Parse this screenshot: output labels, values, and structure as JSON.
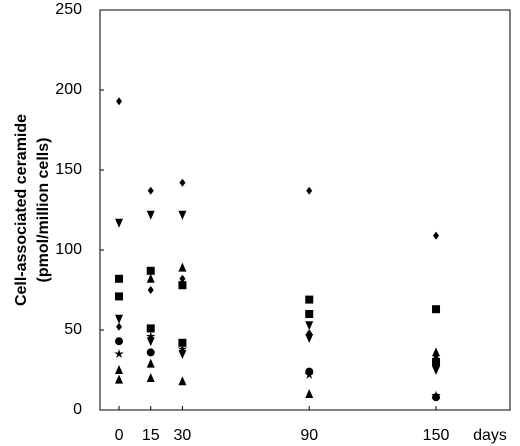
{
  "chart_data": {
    "type": "scatter",
    "ylabel": [
      "Cell-associated ceramide",
      "(pmol/million cells)"
    ],
    "xlabel": "days",
    "xlim": [
      -9,
      185
    ],
    "xticks": [
      0,
      15,
      30,
      90,
      150
    ],
    "ylim": [
      0,
      250
    ],
    "yticks": [
      0,
      50,
      100,
      150,
      200,
      250
    ],
    "grid": false,
    "series": [
      {
        "marker": "diamond",
        "color": "#000000",
        "x": [
          0,
          0,
          15,
          15,
          30,
          30,
          90,
          90,
          150
        ],
        "values": [
          193,
          52,
          137,
          75,
          142,
          82,
          137,
          48,
          109
        ]
      },
      {
        "marker": "triangle-down",
        "color": "#000000",
        "x": [
          0,
          0,
          15,
          15,
          30,
          30,
          90,
          90,
          150
        ],
        "values": [
          117,
          57,
          122,
          43,
          122,
          35,
          53,
          45,
          25
        ]
      },
      {
        "marker": "square",
        "color": "#000000",
        "x": [
          0,
          0,
          15,
          15,
          30,
          30,
          90,
          90,
          150,
          150
        ],
        "values": [
          82,
          71,
          87,
          51,
          78,
          42,
          69,
          60,
          63,
          30
        ]
      },
      {
        "marker": "triangle",
        "color": "#000000",
        "x": [
          0,
          0,
          15,
          15,
          15,
          30,
          30,
          30,
          90,
          150,
          150
        ],
        "values": [
          25,
          19,
          82,
          29,
          20,
          89,
          80,
          18,
          10,
          36,
          33
        ]
      },
      {
        "marker": "circle",
        "color": "#000000",
        "x": [
          0,
          15,
          90,
          150
        ],
        "values": [
          43,
          36,
          24,
          8
        ]
      },
      {
        "marker": "star",
        "color": "#000000",
        "x": [
          0,
          15,
          30,
          90,
          150
        ],
        "values": [
          35,
          46,
          38,
          22,
          9
        ]
      }
    ]
  }
}
